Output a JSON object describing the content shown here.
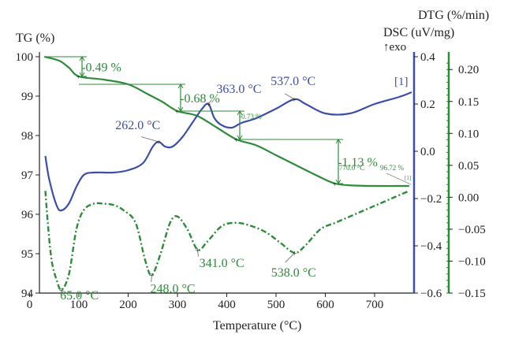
{
  "chart_data": {
    "type": "line",
    "xlabel": "Temperature (°C)",
    "xlim": [
      20,
      780
    ],
    "x_ticks": [
      "0",
      "100",
      "200",
      "300",
      "400",
      "500",
      "600",
      "700"
    ],
    "y_axes": {
      "tg": {
        "label": "TG (%)",
        "ylim": [
          94,
          100
        ],
        "ticks": [
          "94",
          "95",
          "96",
          "97",
          "98",
          "99",
          "100"
        ]
      },
      "dsc": {
        "label_line1": "DSC (uV/mg)",
        "label_line2": "↑exo",
        "ylim": [
          -0.6,
          0.4
        ],
        "ticks": [
          "−0.6",
          "−0.4",
          "−0.2",
          "0.0",
          "0.2",
          "0.4"
        ]
      },
      "dtg": {
        "label": "DTG (%/min)",
        "ylim": [
          -0.15,
          0.22
        ],
        "ticks": [
          "−0.15",
          "−0.10",
          "−0.05",
          "0.00",
          "0.05",
          "0.10",
          "0.15",
          "0.20"
        ]
      }
    },
    "colors": {
      "tg": "#2e8b3a",
      "dsc": "#3c4fa8",
      "dtg": "#2e8b3a",
      "axis": "#3c4fa8"
    },
    "series": [
      {
        "key": "tg",
        "axis": "tg",
        "style": "solid",
        "points": [
          [
            30,
            100
          ],
          [
            60,
            99.9
          ],
          [
            80,
            99.72
          ],
          [
            100,
            99.5
          ],
          [
            150,
            99.42
          ],
          [
            200,
            99.3
          ],
          [
            240,
            99.05
          ],
          [
            270,
            98.85
          ],
          [
            300,
            98.62
          ],
          [
            340,
            98.5
          ],
          [
            380,
            98.2
          ],
          [
            420,
            97.9
          ],
          [
            460,
            97.75
          ],
          [
            500,
            97.5
          ],
          [
            540,
            97.25
          ],
          [
            580,
            97.0
          ],
          [
            620,
            96.78
          ],
          [
            660,
            96.73
          ],
          [
            700,
            96.72
          ],
          [
            770,
            96.72
          ]
        ]
      },
      {
        "key": "dsc",
        "axis": "dsc",
        "style": "solid",
        "points": [
          [
            32,
            -0.02
          ],
          [
            40,
            -0.12
          ],
          [
            55,
            -0.23
          ],
          [
            65,
            -0.25
          ],
          [
            80,
            -0.22
          ],
          [
            95,
            -0.15
          ],
          [
            110,
            -0.1
          ],
          [
            130,
            -0.09
          ],
          [
            170,
            -0.09
          ],
          [
            200,
            -0.08
          ],
          [
            230,
            -0.05
          ],
          [
            250,
            0.02
          ],
          [
            262,
            0.04
          ],
          [
            275,
            0.02
          ],
          [
            290,
            0.02
          ],
          [
            310,
            0.06
          ],
          [
            330,
            0.12
          ],
          [
            350,
            0.18
          ],
          [
            363,
            0.2
          ],
          [
            375,
            0.14
          ],
          [
            390,
            0.11
          ],
          [
            410,
            0.1
          ],
          [
            430,
            0.12
          ],
          [
            460,
            0.14
          ],
          [
            500,
            0.18
          ],
          [
            537,
            0.22
          ],
          [
            560,
            0.2
          ],
          [
            600,
            0.16
          ],
          [
            650,
            0.16
          ],
          [
            700,
            0.2
          ],
          [
            750,
            0.23
          ],
          [
            775,
            0.25
          ]
        ]
      },
      {
        "key": "dtg",
        "axis": "dtg",
        "style": "dashdot",
        "points": [
          [
            32,
            0.01
          ],
          [
            38,
            -0.05
          ],
          [
            45,
            -0.1
          ],
          [
            55,
            -0.13
          ],
          [
            65,
            -0.145
          ],
          [
            80,
            -0.12
          ],
          [
            95,
            -0.05
          ],
          [
            110,
            -0.02
          ],
          [
            130,
            -0.01
          ],
          [
            150,
            -0.01
          ],
          [
            170,
            -0.012
          ],
          [
            190,
            -0.02
          ],
          [
            215,
            -0.04
          ],
          [
            235,
            -0.1
          ],
          [
            248,
            -0.122
          ],
          [
            265,
            -0.09
          ],
          [
            285,
            -0.04
          ],
          [
            300,
            -0.03
          ],
          [
            320,
            -0.05
          ],
          [
            341,
            -0.082
          ],
          [
            360,
            -0.07
          ],
          [
            390,
            -0.045
          ],
          [
            420,
            -0.04
          ],
          [
            450,
            -0.045
          ],
          [
            480,
            -0.055
          ],
          [
            510,
            -0.072
          ],
          [
            538,
            -0.087
          ],
          [
            560,
            -0.075
          ],
          [
            590,
            -0.05
          ],
          [
            620,
            -0.04
          ],
          [
            650,
            -0.03
          ],
          [
            680,
            -0.02
          ],
          [
            710,
            -0.01
          ],
          [
            740,
            0.0
          ],
          [
            770,
            0.01
          ]
        ]
      }
    ],
    "step_annotations": [
      {
        "label": "-0.49 %",
        "x_from": 30,
        "x_to": 100,
        "y_from": 100,
        "y_to": 99.5,
        "label_x": 105
      },
      {
        "label": "-0.68 %",
        "x_from": 100,
        "x_to": 300,
        "y_from": 99.3,
        "y_to": 98.62,
        "label_x": 305
      },
      {
        "label": "-0.73 %",
        "x_from": 300,
        "x_to": 420,
        "y_from": 98.62,
        "y_to": 97.9,
        "label_x": 425,
        "small": true
      },
      {
        "label": "-1.13 %",
        "x_from": 420,
        "x_to": 620,
        "y_from": 97.9,
        "y_to": 96.78,
        "label_x": 625
      }
    ],
    "peak_labels": [
      {
        "label": "537.0 °C",
        "color_key": "dsc",
        "x": 537,
        "axis": "dsc",
        "y": 0.22,
        "dx": -30,
        "dy": -18
      },
      {
        "label": "363.0 °C",
        "color_key": "dsc",
        "x": 363,
        "axis": "dsc",
        "y": 0.2,
        "dx": 10,
        "dy": -14
      },
      {
        "label": "262.0 °C",
        "color_key": "dsc",
        "x": 262,
        "axis": "dsc",
        "y": 0.04,
        "dx": -55,
        "dy": -16
      },
      {
        "label": "65.0 °C",
        "color_key": "dtg",
        "x": 65,
        "axis": "dtg",
        "y": -0.145,
        "dx": -2,
        "dy": 12
      },
      {
        "label": "248.0 °C",
        "color_key": "dtg",
        "x": 248,
        "axis": "dtg",
        "y": -0.122,
        "dx": -2,
        "dy": 22
      },
      {
        "label": "341.0 °C",
        "color_key": "dtg",
        "x": 341,
        "axis": "dtg",
        "y": -0.082,
        "dx": 2,
        "dy": 22
      },
      {
        "label": "538.0 °C",
        "color_key": "dtg",
        "x": 538,
        "axis": "dtg",
        "y": -0.087,
        "dx": -30,
        "dy": 30
      }
    ],
    "end_labels": {
      "text1": "770.0 °C",
      "text2": "96.72 %",
      "marker": "[1]",
      "series_marker": "[1]"
    }
  }
}
